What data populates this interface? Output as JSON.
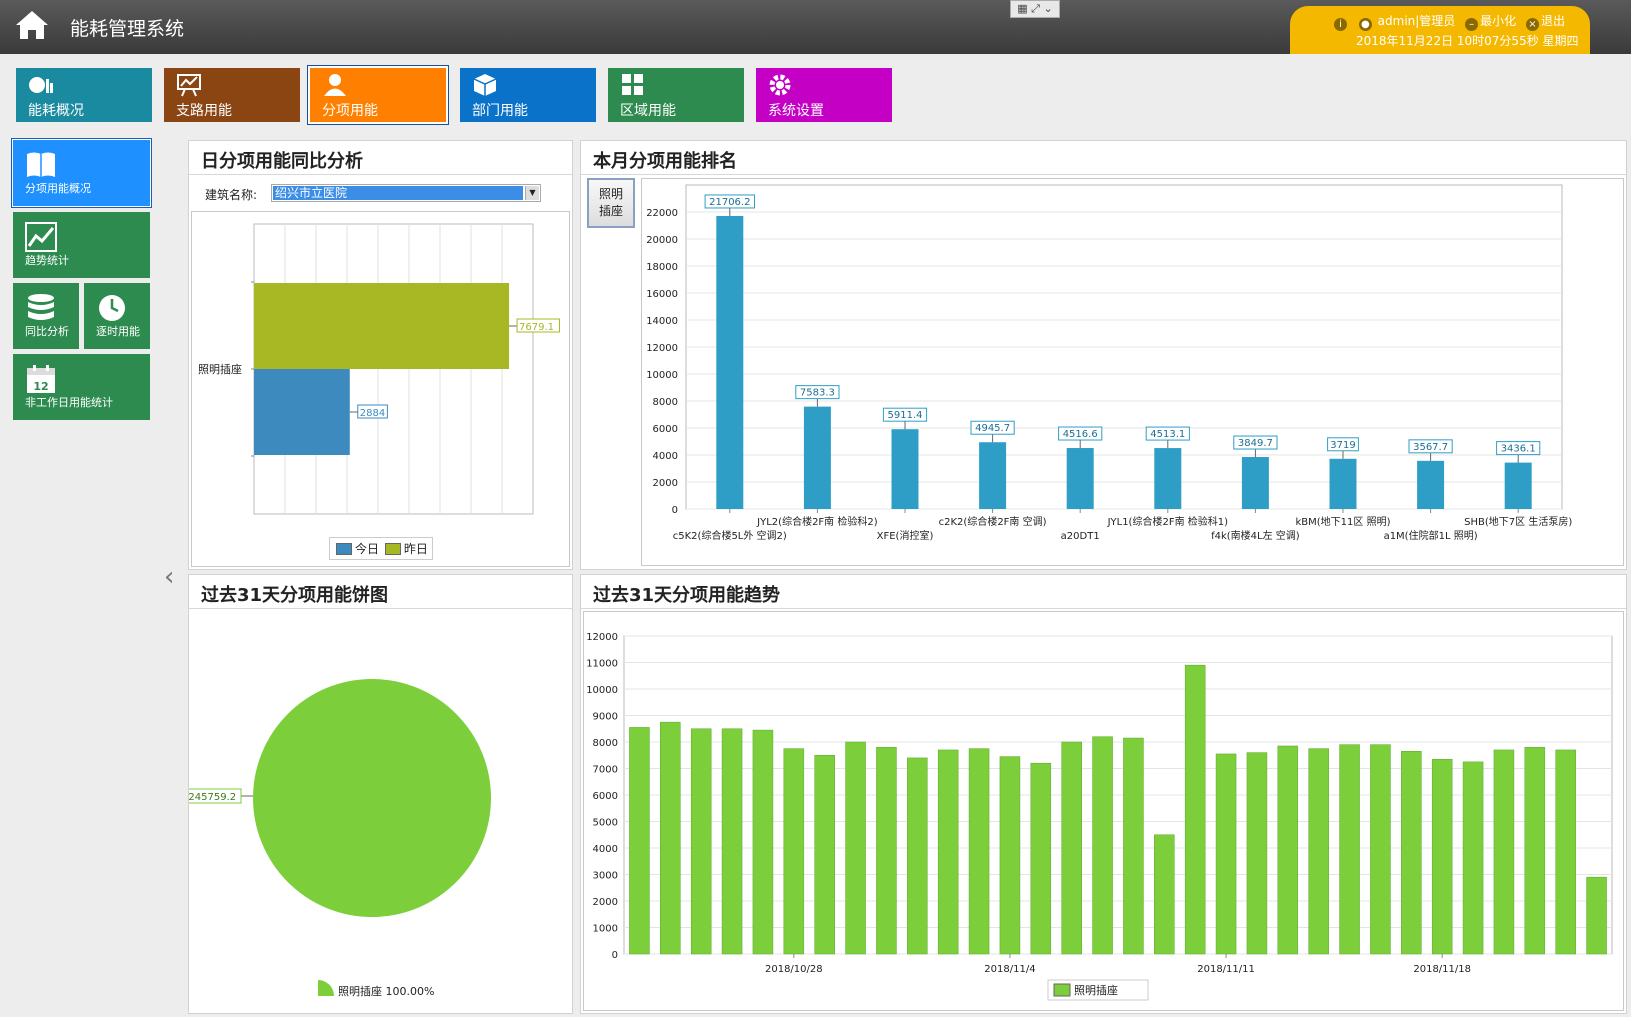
{
  "app": {
    "title": "能耗管理系统"
  },
  "window": {
    "controls_label": "▦ ⤢ ⌄"
  },
  "user": {
    "role_label": "admin|管理员",
    "minimize_label": "最小化",
    "logout_label": "退出",
    "datetime": "2018年11月22日 10时07分55秒 星期四"
  },
  "nav": [
    {
      "label": "能耗概况",
      "icon": "energy-overview-icon",
      "color": "#1a8aa0"
    },
    {
      "label": "支路用能",
      "icon": "chart-board-icon",
      "color": "#8b4513"
    },
    {
      "label": "分项用能",
      "icon": "user-icon",
      "color": "#ff8000"
    },
    {
      "label": "部门用能",
      "icon": "cube-icon",
      "color": "#0a72c8"
    },
    {
      "label": "区域用能",
      "icon": "grid-icon",
      "color": "#2e8b50"
    },
    {
      "label": "系统设置",
      "icon": "gear-icon",
      "color": "#c400c4"
    }
  ],
  "sidebar": [
    {
      "label": "分项用能概况",
      "icon": "book-icon"
    },
    {
      "label": "趋势统计",
      "icon": "trend-icon"
    },
    {
      "label": "同比分析",
      "icon": "database-icon"
    },
    {
      "label": "逐时用能",
      "icon": "clock-icon"
    },
    {
      "label": "非工作日用能统计",
      "icon": "calendar-icon",
      "icon_text": "12"
    }
  ],
  "panels": {
    "daily_compare": {
      "title": "日分项用能同比分析",
      "building_label": "建筑名称:",
      "building_value": "绍兴市立医院"
    },
    "monthly_rank": {
      "title": "本月分项用能排名",
      "button_label": "照明\n插座"
    },
    "pie31": {
      "title": "过去31天分项用能饼图"
    },
    "trend31": {
      "title": "过去31天分项用能趋势"
    }
  },
  "colors": {
    "today": "#3d8abf",
    "yesterday": "#a8b825",
    "rank_bar": "#2e9ec6",
    "green": "#7ccf3b"
  },
  "chart_data": [
    {
      "id": "daily_compare",
      "type": "bar",
      "orientation": "horizontal",
      "categories": [
        "照明插座"
      ],
      "series": [
        {
          "name": "今日",
          "values": [
            2884
          ]
        },
        {
          "name": "昨日",
          "values": [
            7679.1
          ]
        }
      ],
      "xlim": [
        0,
        8400
      ],
      "grid": true,
      "legend": "bottom"
    },
    {
      "id": "monthly_rank",
      "type": "bar",
      "categories": [
        "c5K2(综合楼5L外 空调2)",
        "JYL2(综合楼2F南 检验科2)",
        "XFE(消控室)",
        "c2K2(综合楼2F南 空调)",
        "a20DT1",
        "JYL1(综合楼2F南 检验科1)",
        "f4k(南楼4L左 空调)",
        "kBM(地下11区 照明)",
        "a1M(住院部1L 照明)",
        "SHB(地下7区 生活泵房)"
      ],
      "values": [
        21706.2,
        7583.3,
        5911.4,
        4945.7,
        4516.6,
        4513.1,
        3849.7,
        3719,
        3567.7,
        3436.1
      ],
      "data_labels": [
        "21706.2",
        "7583.3",
        "5911.4",
        "4945.7",
        "4516.6",
        "4513.1",
        "3849.7",
        "3719",
        "3567.7",
        "3436.1"
      ],
      "yticks": [
        "0",
        "2000",
        "4000",
        "6000",
        "8000",
        "10000",
        "12000",
        "14000",
        "16000",
        "18000",
        "20000",
        "22000"
      ],
      "ylim": [
        0,
        24000
      ],
      "grid": true
    },
    {
      "id": "pie31",
      "type": "pie",
      "slices": [
        {
          "name": "照明插座",
          "value": 245759.2,
          "percent": "100.00%"
        }
      ],
      "data_label": "245759.2",
      "legend_text": "照明插座 100.00%",
      "legend": "bottom"
    },
    {
      "id": "trend31",
      "type": "bar",
      "series_name": "照明插座",
      "start_date": "2018-10-23",
      "values": [
        8550,
        8750,
        8500,
        8500,
        8450,
        7750,
        7500,
        8000,
        7800,
        7400,
        7700,
        7750,
        7450,
        7200,
        8000,
        8200,
        8150,
        4500,
        10900,
        7550,
        7600,
        7850,
        7750,
        7900,
        7900,
        7650,
        7350,
        7250,
        7700,
        7800,
        7700,
        2900
      ],
      "xtick_labels": [
        "2018/10/28",
        "2018/11/4",
        "2018/11/11",
        "2018/11/18"
      ],
      "yticks": [
        "0",
        "1000",
        "2000",
        "3000",
        "4000",
        "5000",
        "6000",
        "7000",
        "8000",
        "9000",
        "10000",
        "11000",
        "12000"
      ],
      "ylim": [
        0,
        12000
      ],
      "grid": true,
      "legend": "bottom"
    }
  ]
}
